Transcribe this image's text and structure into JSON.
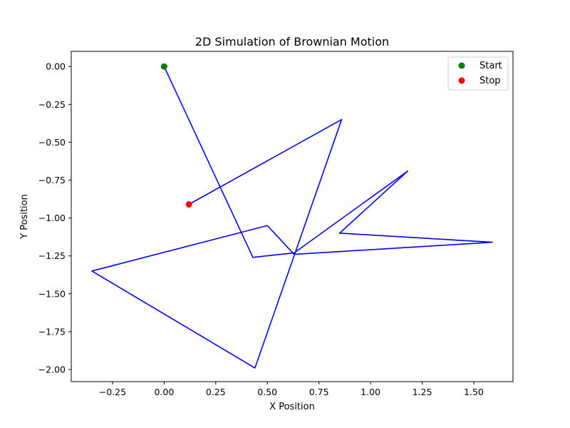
{
  "chart_data": {
    "type": "line",
    "title": "2D Simulation of Brownian Motion",
    "xlabel": "X Position",
    "ylabel": "Y Position",
    "xlim": [
      -0.45,
      1.69
    ],
    "ylim": [
      -2.08,
      0.1
    ],
    "xticks": [
      -0.25,
      0.0,
      0.25,
      0.5,
      0.75,
      1.0,
      1.25,
      1.5
    ],
    "xtick_labels": [
      "−0.25",
      "0.00",
      "0.25",
      "0.50",
      "0.75",
      "1.00",
      "1.25",
      "1.50"
    ],
    "yticks": [
      0.0,
      -0.25,
      -0.5,
      -0.75,
      -1.0,
      -1.25,
      -1.5,
      -1.75,
      -2.0
    ],
    "ytick_labels": [
      "0.00",
      "−0.25",
      "−0.50",
      "−0.75",
      "−1.00",
      "−1.25",
      "−1.50",
      "−1.75",
      "−2.00"
    ],
    "grid": false,
    "legend_position": "top-right",
    "series": [
      {
        "color": "#0000ff",
        "x": [
          0.0,
          0.43,
          0.63,
          1.18,
          0.85,
          1.59,
          0.63,
          0.5,
          -0.35,
          0.44,
          0.86,
          0.12
        ],
        "y": [
          0.0,
          -1.26,
          -1.23,
          -0.69,
          -1.1,
          -1.16,
          -1.24,
          -1.05,
          -1.35,
          -1.99,
          -0.35,
          -0.91
        ]
      }
    ],
    "markers": [
      {
        "name": "Start",
        "x": 0.0,
        "y": 0.0,
        "color": "#008000"
      },
      {
        "name": "Stop",
        "x": 0.12,
        "y": -0.91,
        "color": "#ff0000"
      }
    ]
  }
}
